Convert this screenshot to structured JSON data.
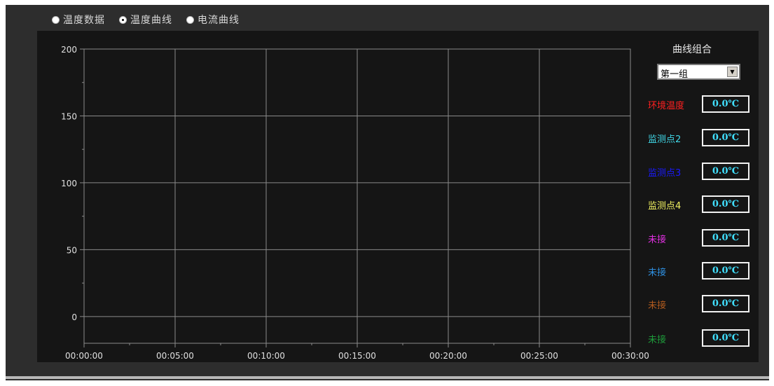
{
  "tabs": [
    {
      "label": "温度数据",
      "selected": false
    },
    {
      "label": "温度曲线",
      "selected": true
    },
    {
      "label": "电流曲线",
      "selected": false
    }
  ],
  "panel": {
    "title": "曲线组合",
    "group_select": {
      "value": "第一组"
    }
  },
  "channels": [
    {
      "label": "环境温度",
      "value": "0.0℃",
      "color": "#ff2020"
    },
    {
      "label": "监测点2",
      "value": "0.0℃",
      "color": "#40d8e8"
    },
    {
      "label": "监测点3",
      "value": "0.0℃",
      "color": "#1a1aff"
    },
    {
      "label": "监测点4",
      "value": "0.0℃",
      "color": "#f0f060"
    },
    {
      "label": "未接",
      "value": "0.0℃",
      "color": "#e030e0"
    },
    {
      "label": "未接",
      "value": "0.0℃",
      "color": "#2e8fe0"
    },
    {
      "label": "未接",
      "value": "0.0℃",
      "color": "#b05a1e"
    },
    {
      "label": "未接",
      "value": "0.0℃",
      "color": "#1e9a3a"
    }
  ],
  "chart_data": {
    "type": "line",
    "title": "",
    "xlabel": "",
    "ylabel": "",
    "x_ticks": [
      "00:00:00",
      "00:05:00",
      "00:10:00",
      "00:15:00",
      "00:20:00",
      "00:25:00",
      "00:30:00"
    ],
    "y_ticks": [
      200,
      150,
      100,
      50,
      0
    ],
    "ylim": [
      -20,
      200
    ],
    "xlim": [
      "00:00:00",
      "00:30:00"
    ],
    "grid": true,
    "series": []
  },
  "colors": {
    "background": "#2d2d2d",
    "plot_background": "#151515",
    "grid": "#8a8a8a",
    "axis_text": "#e0e0e0",
    "value_text": "#40e0ff"
  }
}
